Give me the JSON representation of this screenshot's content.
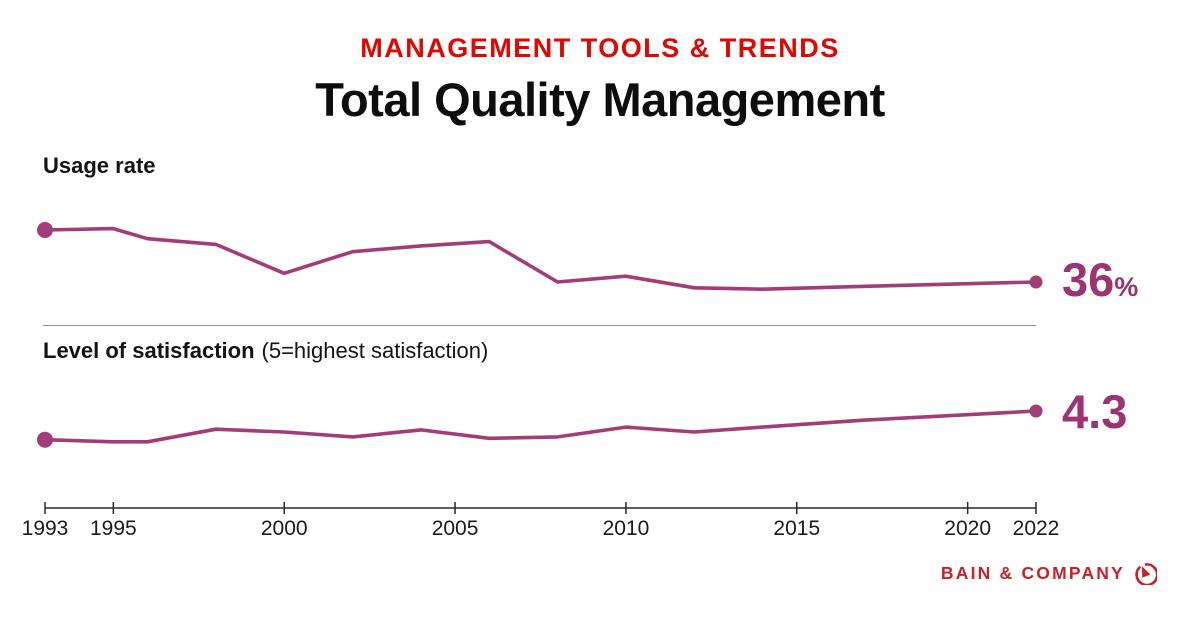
{
  "header": {
    "eyebrow": "MANAGEMENT TOOLS & TRENDS",
    "title": "Total Quality Management"
  },
  "chart_data": [
    {
      "type": "line",
      "title": "Usage rate",
      "unit": "%",
      "x": [
        1993,
        1995,
        1996,
        1998,
        2000,
        2002,
        2004,
        2006,
        2008,
        2010,
        2012,
        2014,
        2017,
        2022
      ],
      "values": [
        72,
        73,
        66,
        62,
        42,
        57,
        61,
        64,
        36,
        40,
        32,
        31,
        33,
        36
      ],
      "end_value": "36",
      "end_unit": "%",
      "xlim": [
        1993,
        2022
      ],
      "grid": false,
      "legend": "none"
    },
    {
      "type": "line",
      "title": "Level of satisfaction",
      "subtitle": "(5=highest satisfaction)",
      "x": [
        1993,
        1995,
        1996,
        1998,
        2000,
        2002,
        2004,
        2006,
        2008,
        2010,
        2012,
        2014,
        2017,
        2022
      ],
      "values": [
        3.89,
        3.86,
        3.86,
        4.04,
        4.0,
        3.93,
        4.03,
        3.91,
        3.93,
        4.07,
        4.0,
        4.07,
        4.17,
        4.3
      ],
      "end_value": "4.3",
      "scale": [
        1,
        5
      ],
      "xlim": [
        1993,
        2022
      ],
      "grid": false,
      "legend": "none"
    }
  ],
  "x_axis": {
    "ticks": [
      1993,
      1995,
      2000,
      2005,
      2010,
      2015,
      2020,
      2022
    ]
  },
  "footer": {
    "brand": "BAIN & COMPANY",
    "logo_icon": "bain-compass-icon"
  },
  "colors": {
    "accent_red": "#e10600",
    "brand_red": "#cb2026",
    "plum_text": "#9d3372",
    "plum_line": "#a33d79",
    "divider": "#8e8e8e",
    "axis": "#2a2a2a"
  }
}
